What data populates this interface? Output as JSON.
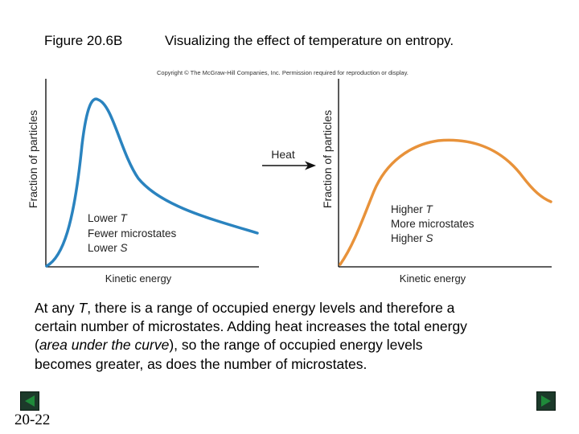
{
  "header": {
    "figure_label": "Figure 20.6B",
    "title": "Visualizing the effect of temperature on entropy.",
    "copyright": "Copyright © The McGraw-Hill Companies, Inc. Permission required for reproduction or display."
  },
  "diagram": {
    "left_panel": {
      "y_axis_label": "Fraction of particles",
      "x_axis_label": "Kinetic energy",
      "annotation_lines": [
        "Lower T",
        "Fewer microstates",
        "Lower S"
      ],
      "curve_color": "#2a83bf"
    },
    "right_panel": {
      "y_axis_label": "Fraction of particles",
      "x_axis_label": "Kinetic energy",
      "annotation_lines": [
        "Higher T",
        "More microstates",
        "Higher S"
      ],
      "curve_color": "#e8923a"
    },
    "arrow_label": "Heat"
  },
  "caption": {
    "lines": [
      "At any T, there is a range of occupied energy levels and therefore a",
      "certain number of microstates. Adding heat increases the total energy",
      "(area under the curve), so the range of occupied energy levels",
      "becomes greater, as does the number of microstates."
    ]
  },
  "footer": {
    "slide_number": "20-22",
    "prev_icon": "left-triangle",
    "next_icon": "right-triangle"
  }
}
